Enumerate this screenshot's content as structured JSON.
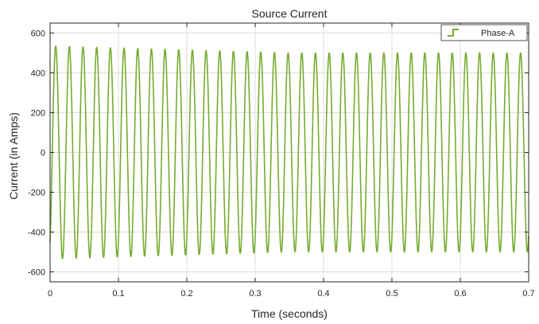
{
  "chart_data": {
    "type": "line",
    "title": "Source Current",
    "xlabel": "Time (seconds)",
    "ylabel": "Current (in Amps)",
    "xlim": [
      0,
      0.7
    ],
    "ylim": [
      -650,
      650
    ],
    "x_ticks": [
      0,
      0.1,
      0.2,
      0.3,
      0.4,
      0.5,
      0.6,
      0.7
    ],
    "x_tick_labels": [
      "0",
      "0.1",
      "0.2",
      "0.3",
      "0.4",
      "0.5",
      "0.6",
      "0.7"
    ],
    "y_ticks": [
      -600,
      -400,
      -200,
      0,
      200,
      400,
      600
    ],
    "y_tick_labels": [
      "-600",
      "-400",
      "-200",
      "0",
      "200",
      "400",
      "600"
    ],
    "grid": true,
    "legend_position": "top-right",
    "series": [
      {
        "name": "Phase-A",
        "color": "#77ac30",
        "waveform": "sinusoid",
        "frequency_hz": 50,
        "amplitude_start": 535,
        "amplitude_end": 500,
        "amplitude_settle_time": 0.35,
        "initial_value": -450
      }
    ]
  }
}
